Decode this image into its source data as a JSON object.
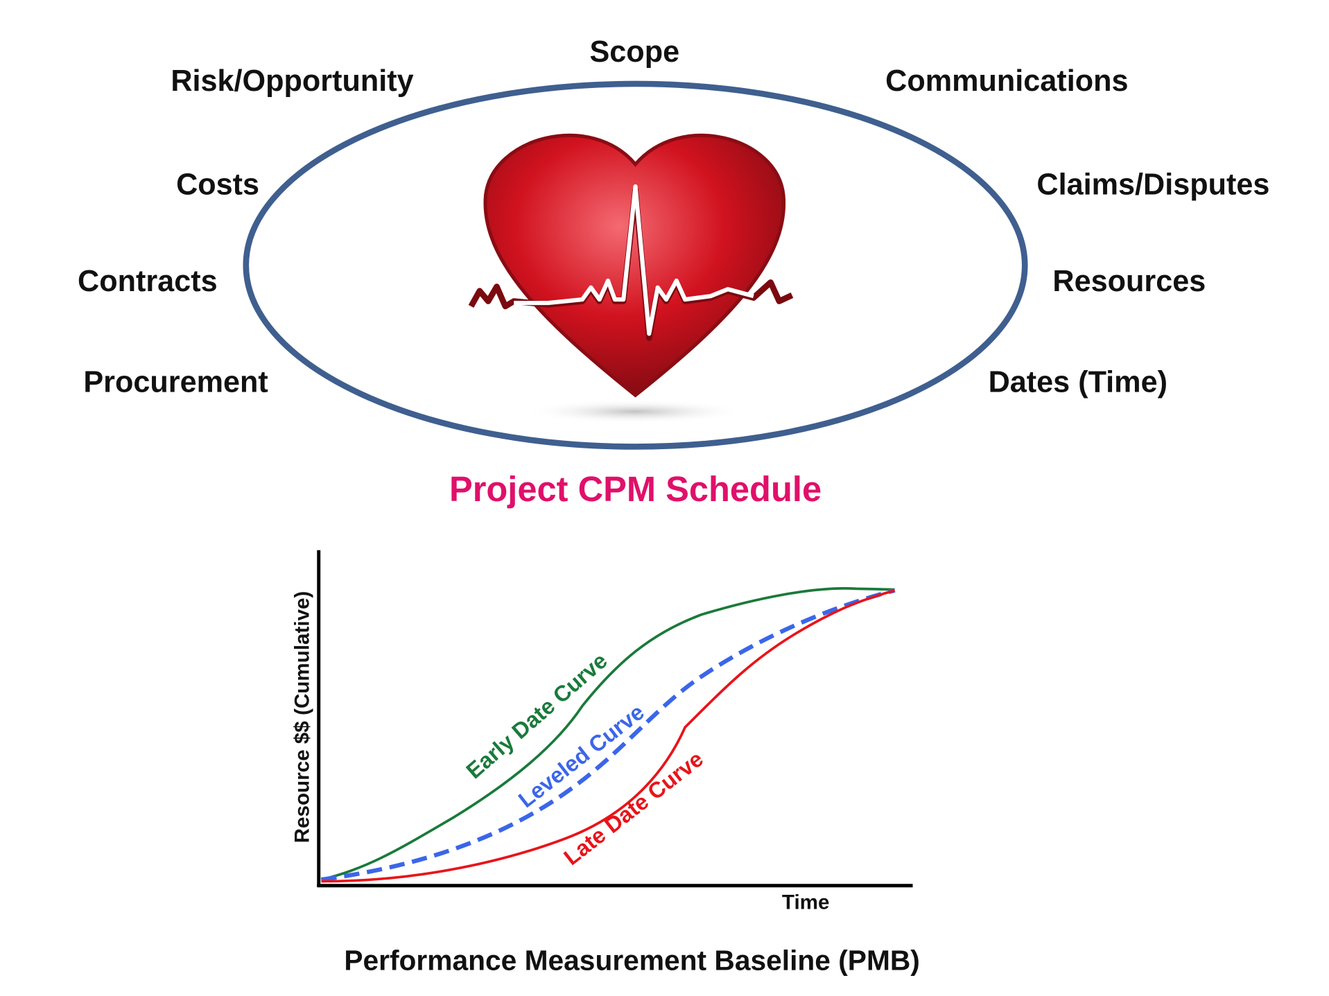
{
  "diagram": {
    "surrounding_labels": [
      "Scope",
      "Risk/Opportunity",
      "Communications",
      "Costs",
      "Claims/Disputes",
      "Contracts",
      "Resources",
      "Procurement",
      "Dates (Time)"
    ],
    "title": "Project CPM Schedule"
  },
  "s_curve_chart": {
    "y_axis_label": "Resource $$ (Cumulative)",
    "x_axis_label": "Time",
    "curves": [
      {
        "label": "Early Date Curve"
      },
      {
        "label": "Leveled Curve"
      },
      {
        "label": "Late Date Curve"
      }
    ],
    "caption": "Performance Measurement Baseline (PMB)"
  }
}
